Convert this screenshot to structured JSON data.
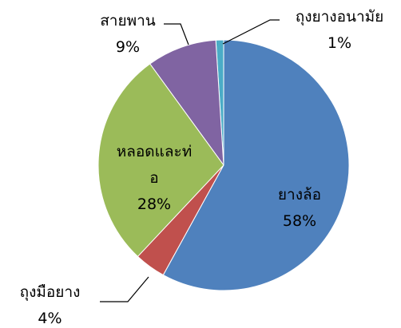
{
  "chart_data": {
    "type": "pie",
    "categories": [
      "ยางล้อ",
      "ถุงมือยาง",
      "หลอดและท่อ",
      "สายพาน",
      "ถุงยางอนามัย"
    ],
    "values": [
      58,
      4,
      28,
      9,
      1
    ],
    "value_labels": [
      "58%",
      "4%",
      "28%",
      "9%",
      "1%"
    ],
    "colors": [
      "#4f81bd",
      "#c0504d",
      "#9bbb59",
      "#8064a2",
      "#4bacc6"
    ]
  }
}
